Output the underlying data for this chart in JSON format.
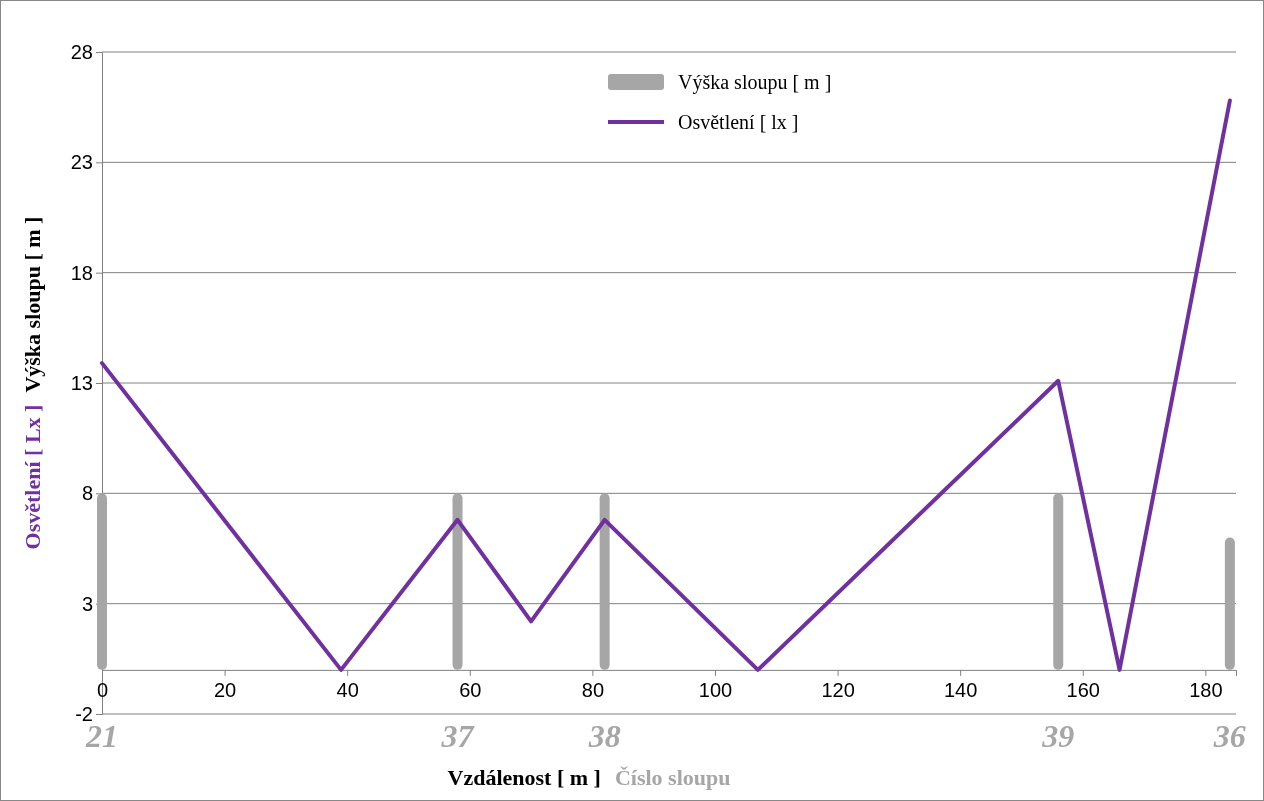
{
  "chart_data": {
    "type": "line",
    "xlabel": "Vzdálenost [ m ]",
    "ylabel": "Výška sloupu [ m ]",
    "xlim": [
      0,
      185
    ],
    "xticks": [
      0,
      20,
      40,
      60,
      80,
      100,
      120,
      140,
      160,
      180
    ],
    "ylim": [
      -2,
      28
    ],
    "yticks": [
      -2,
      3,
      8,
      13,
      18,
      23,
      28
    ],
    "grid": "y",
    "legend": "top",
    "series": [
      {
        "name": "Výška sloupu [ m ]",
        "type": "bar",
        "color": "#a6a6a6",
        "x": [
          0,
          58,
          82,
          156,
          184
        ],
        "values": [
          8,
          8,
          8,
          8,
          6
        ]
      },
      {
        "name": "Osvětlení [ lx ]",
        "type": "line",
        "color": "#7030a0",
        "x": [
          0,
          39,
          58,
          70,
          82,
          107,
          156,
          166,
          184
        ],
        "values": [
          13.9,
          0,
          6.8,
          2.2,
          6.8,
          0,
          13.1,
          0,
          25.8
        ]
      }
    ],
    "annotations": [
      "21",
      "37",
      "38",
      "39",
      "36",
      "Číslo sloupu",
      "Osvětlení [ Lx ]"
    ]
  }
}
